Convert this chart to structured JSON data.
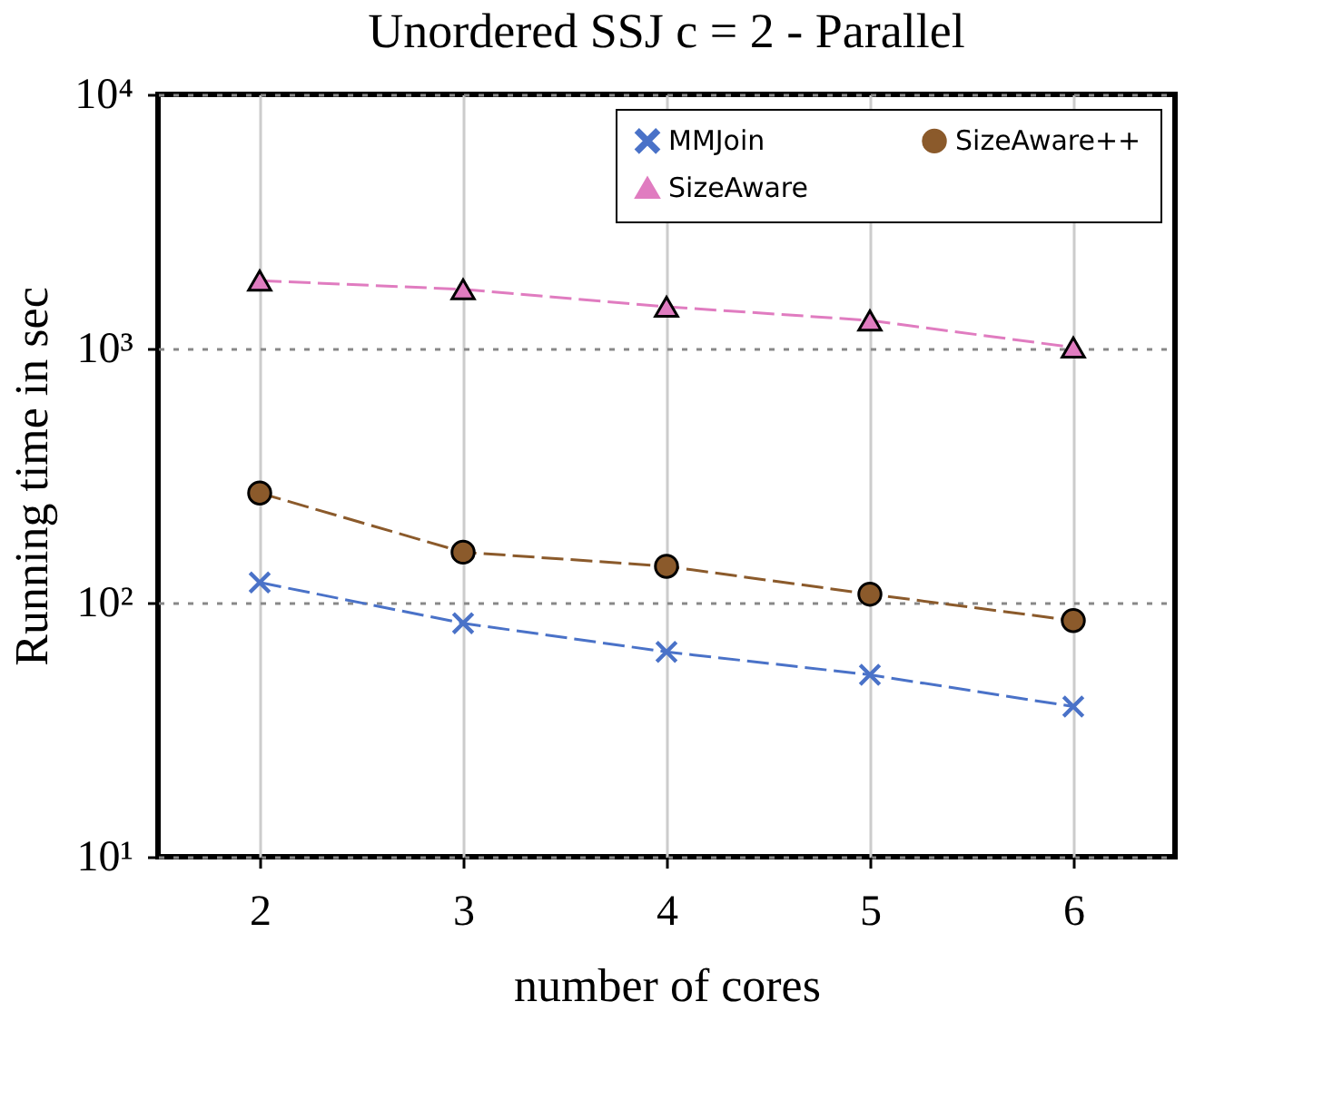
{
  "chart_data": {
    "type": "line",
    "title": "Unordered SSJ c = 2 - Parallel",
    "xlabel": "number of cores",
    "ylabel": "Running time in sec",
    "x": [
      2,
      3,
      4,
      5,
      6
    ],
    "series": [
      {
        "name": "MMJoin",
        "color": "#4a72c8",
        "marker": "cross",
        "values": [
          120,
          83,
          64,
          52,
          39
        ]
      },
      {
        "name": "SizeAware",
        "color": "#e07cc0",
        "marker": "triangle",
        "values": [
          1850,
          1710,
          1460,
          1290,
          1010
        ]
      },
      {
        "name": "SizeAware++",
        "color": "#8b5a2b",
        "marker": "circle",
        "values": [
          270,
          158,
          139,
          108,
          85
        ]
      }
    ],
    "xlim": [
      1.5,
      6.5
    ],
    "xticks": [
      2,
      3,
      4,
      5,
      6
    ],
    "ylim": [
      10,
      10000
    ],
    "yticks": [
      {
        "value": 10,
        "label": "10¹"
      },
      {
        "value": 100,
        "label": "10²"
      },
      {
        "value": 1000,
        "label": "10³"
      },
      {
        "value": 10000,
        "label": "10⁴"
      }
    ],
    "log": "y",
    "grid": true,
    "legend": "top right",
    "line_style": "dashed"
  }
}
